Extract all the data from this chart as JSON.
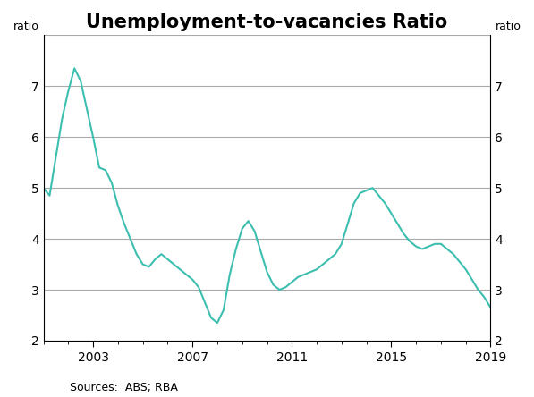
{
  "title": "Unemployment-to-vacancies Ratio",
  "ylabel_left": "ratio",
  "ylabel_right": "ratio",
  "source": "Sources:  ABS; RBA",
  "line_color": "#3dbfb0",
  "line_width": 1.5,
  "ylim": [
    2,
    8
  ],
  "yticks": [
    2,
    3,
    4,
    5,
    6,
    7,
    8
  ],
  "background_color": "#ffffff",
  "grid_color": "#aaaaaa",
  "x_data": [
    2001.0,
    2001.25,
    2001.5,
    2001.75,
    2002.0,
    2002.25,
    2002.5,
    2002.75,
    2003.0,
    2003.25,
    2003.5,
    2003.75,
    2004.0,
    2004.25,
    2004.5,
    2004.75,
    2005.0,
    2005.25,
    2005.5,
    2005.75,
    2006.0,
    2006.25,
    2006.5,
    2006.75,
    2007.0,
    2007.25,
    2007.5,
    2007.75,
    2008.0,
    2008.25,
    2008.5,
    2008.75,
    2009.0,
    2009.25,
    2009.5,
    2009.75,
    2010.0,
    2010.25,
    2010.5,
    2010.75,
    2011.0,
    2011.25,
    2011.5,
    2011.75,
    2012.0,
    2012.25,
    2012.5,
    2012.75,
    2013.0,
    2013.25,
    2013.5,
    2013.75,
    2014.0,
    2014.25,
    2014.5,
    2014.75,
    2015.0,
    2015.25,
    2015.5,
    2015.75,
    2016.0,
    2016.25,
    2016.5,
    2016.75,
    2017.0,
    2017.25,
    2017.5,
    2017.75,
    2018.0,
    2018.25,
    2018.5,
    2018.75,
    2019.0
  ],
  "y_data": [
    5.0,
    4.85,
    5.6,
    6.35,
    6.9,
    7.35,
    7.1,
    6.55,
    6.0,
    5.4,
    5.35,
    5.1,
    4.65,
    4.3,
    4.0,
    3.7,
    3.5,
    3.45,
    3.6,
    3.7,
    3.6,
    3.5,
    3.4,
    3.3,
    3.2,
    3.05,
    2.75,
    2.45,
    2.35,
    2.6,
    3.3,
    3.8,
    4.2,
    4.35,
    4.15,
    3.75,
    3.35,
    3.1,
    3.0,
    3.05,
    3.15,
    3.25,
    3.3,
    3.35,
    3.4,
    3.5,
    3.6,
    3.7,
    3.9,
    4.3,
    4.7,
    4.9,
    4.95,
    5.0,
    4.85,
    4.7,
    4.5,
    4.3,
    4.1,
    3.95,
    3.85,
    3.8,
    3.85,
    3.9,
    3.9,
    3.8,
    3.7,
    3.55,
    3.4,
    3.2,
    3.0,
    2.85,
    2.65
  ],
  "xlim": [
    2001.0,
    2019.0
  ],
  "xticks": [
    2003,
    2007,
    2011,
    2015,
    2019
  ],
  "title_fontsize": 15,
  "label_fontsize": 9,
  "tick_fontsize": 10,
  "source_fontsize": 9
}
